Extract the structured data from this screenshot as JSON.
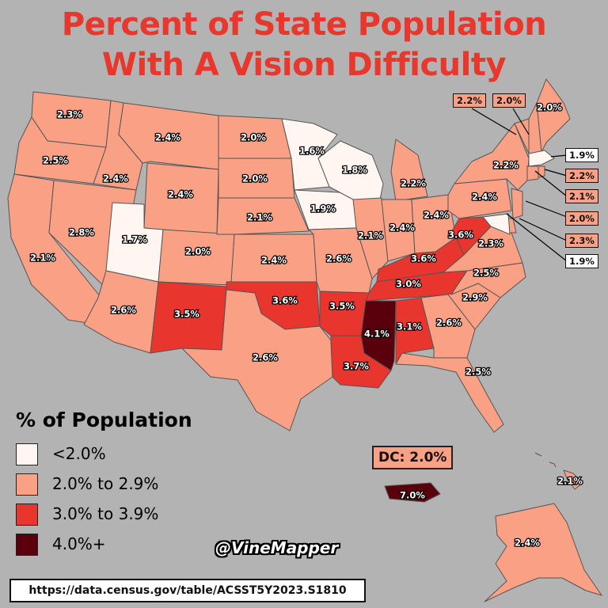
{
  "title_line1": "Percent of State Population",
  "title_line2": "With A Vision Difficulty",
  "colors": {
    "background": "#b3b3b3",
    "title": "#e8372d",
    "lt2": "#fff6f2",
    "b2": "#f9a085",
    "b3": "#e8352d",
    "b4": "#5a000d"
  },
  "legend": {
    "title": "% of Population",
    "items": [
      {
        "label": "<2.0%",
        "color": "#fff6f2"
      },
      {
        "label": "2.0% to 2.9%",
        "color": "#f9a085"
      },
      {
        "label": "3.0% to 3.9%",
        "color": "#e8352d"
      },
      {
        "label": "4.0%+",
        "color": "#5a000d"
      }
    ]
  },
  "dc_label": "DC: 2.0%",
  "credit": "@VineMapper",
  "source": "https://data.census.gov/table/ACSST5Y2023.S1810",
  "states": {
    "WA": "2.3%",
    "OR": "2.5%",
    "CA": "2.1%",
    "ID": "2.4%",
    "NV": "2.8%",
    "MT": "2.4%",
    "WY": "2.4%",
    "UT": "1.7%",
    "AZ": "2.6%",
    "CO": "2.0%",
    "NM": "3.5%",
    "ND": "2.0%",
    "SD": "2.0%",
    "NE": "2.1%",
    "KS": "2.4%",
    "OK": "3.6%",
    "TX": "2.6%",
    "MN": "1.6%",
    "IA": "1.9%",
    "MO": "2.6%",
    "AR": "3.5%",
    "LA": "3.7%",
    "WI": "1.8%",
    "IL": "2.1%",
    "MI": "2.2%",
    "IN": "2.4%",
    "OH": "2.4%",
    "KY": "3.6%",
    "TN": "3.0%",
    "MS": "4.1%",
    "AL": "3.1%",
    "GA": "2.6%",
    "FL": "2.5%",
    "SC": "2.9%",
    "NC": "2.5%",
    "VA": "2.3%",
    "WV": "3.6%",
    "PA": "2.4%",
    "NY": "2.2%",
    "ME": "2.0%",
    "VT": "2.2%",
    "NH": "2.0%",
    "MA": "1.9%",
    "RI": "2.2%",
    "CT": "2.1%",
    "NJ": "2.0%",
    "DE": "2.3%",
    "MD": "1.9%",
    "AK": "2.4%",
    "HI": "2.1%",
    "PR": "7.0%"
  }
}
